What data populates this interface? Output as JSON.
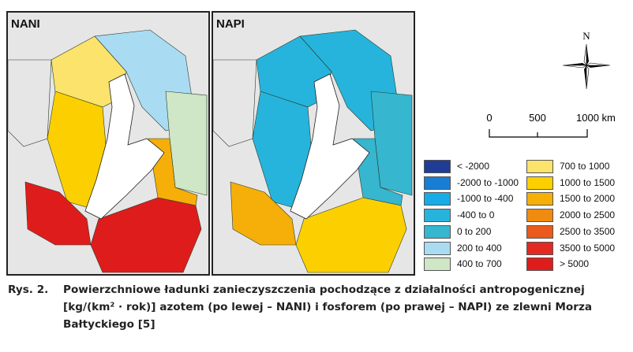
{
  "maps": [
    {
      "title": "NANI"
    },
    {
      "title": "NAPI"
    }
  ],
  "compass": {
    "label": "N"
  },
  "scale_bar": {
    "ticks": [
      "0",
      "500",
      "1000 km"
    ]
  },
  "legend": [
    {
      "label": "< -2000",
      "color": "#1f3d96"
    },
    {
      "label": "-2000 to -1000",
      "color": "#1a7dd4"
    },
    {
      "label": "-1000 to -400",
      "color": "#18ace6"
    },
    {
      "label": "-400 to 0",
      "color": "#26b4dc"
    },
    {
      "label": "0 to 200",
      "color": "#36b6cf"
    },
    {
      "label": "200 to 400",
      "color": "#a9dcf3"
    },
    {
      "label": "400 to 700",
      "color": "#cfe6c7"
    },
    {
      "label": "700 to 1000",
      "color": "#fbe36c"
    },
    {
      "label": "1000 to 1500",
      "color": "#fcd000"
    },
    {
      "label": "1500 to 2000",
      "color": "#f6af08"
    },
    {
      "label": "2000 to 2500",
      "color": "#f08b10"
    },
    {
      "label": "2500 to 3500",
      "color": "#ea5a1d"
    },
    {
      "label": "3500 to 5000",
      "color": "#e32a22"
    },
    {
      "label": "> 5000",
      "color": "#df1c1c"
    }
  ],
  "caption": {
    "number": "Rys. 2.",
    "text": "Powierzchniowe ładunki zanieczyszczenia pochodzące z działalności antropoge­nicznej [kg/(km² · rok)] azotem (po lewej – NANI) i fosforem (po prawej – NAPI) ze zlewni Morza Bałtyckiego [5]"
  }
}
